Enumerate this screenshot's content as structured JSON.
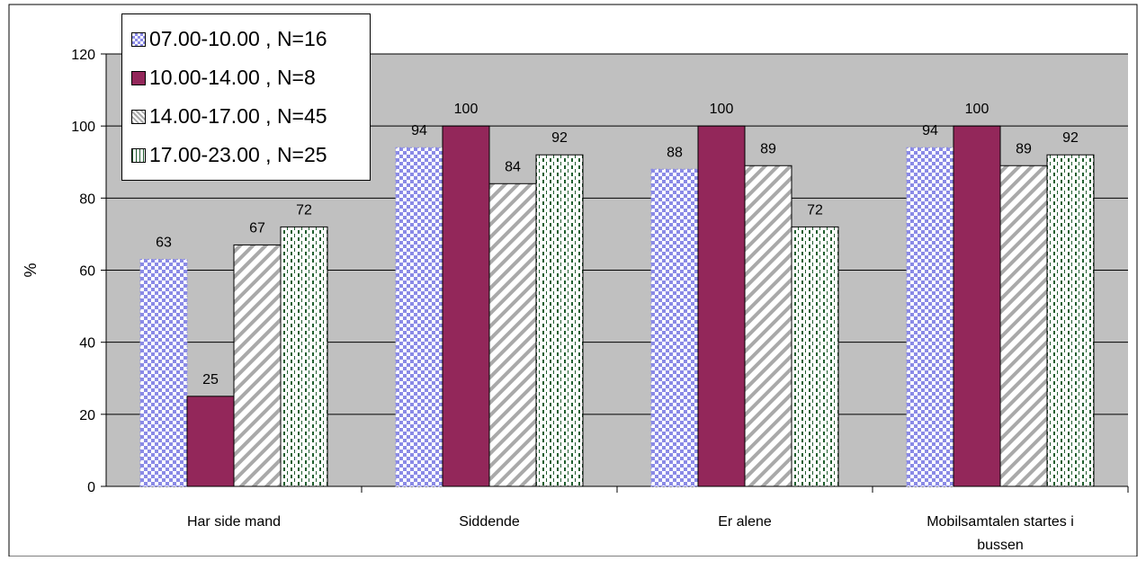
{
  "chart_data": {
    "type": "bar",
    "title": "",
    "xlabel": "",
    "ylabel": "%",
    "ylim": [
      0,
      120
    ],
    "yticks": [
      0,
      20,
      40,
      60,
      80,
      100,
      120
    ],
    "grid": true,
    "legend_position": "top-left",
    "categories": [
      "Har side mand",
      "Siddende",
      "Er alene",
      "Mobilsamtalen startes i bussen"
    ],
    "series": [
      {
        "name": "07.00-10.00 , N=16",
        "values": [
          63,
          94,
          88,
          94
        ],
        "color": "#8a8ae6",
        "pattern": "checker"
      },
      {
        "name": "10.00-14.00 , N=8",
        "values": [
          25,
          100,
          100,
          100
        ],
        "color": "#93275a",
        "pattern": "solid"
      },
      {
        "name": "14.00-17.00 , N=45",
        "values": [
          67,
          84,
          89,
          89
        ],
        "color": "#b3b3b3",
        "pattern": "diagonal"
      },
      {
        "name": "17.00-23.00 , N=25",
        "values": [
          72,
          92,
          72,
          92
        ],
        "color": "#1f5e2e",
        "pattern": "dashed-vertical"
      }
    ]
  },
  "colors": {
    "plot_background": "#c0c0c0",
    "gridline": "#000000"
  }
}
